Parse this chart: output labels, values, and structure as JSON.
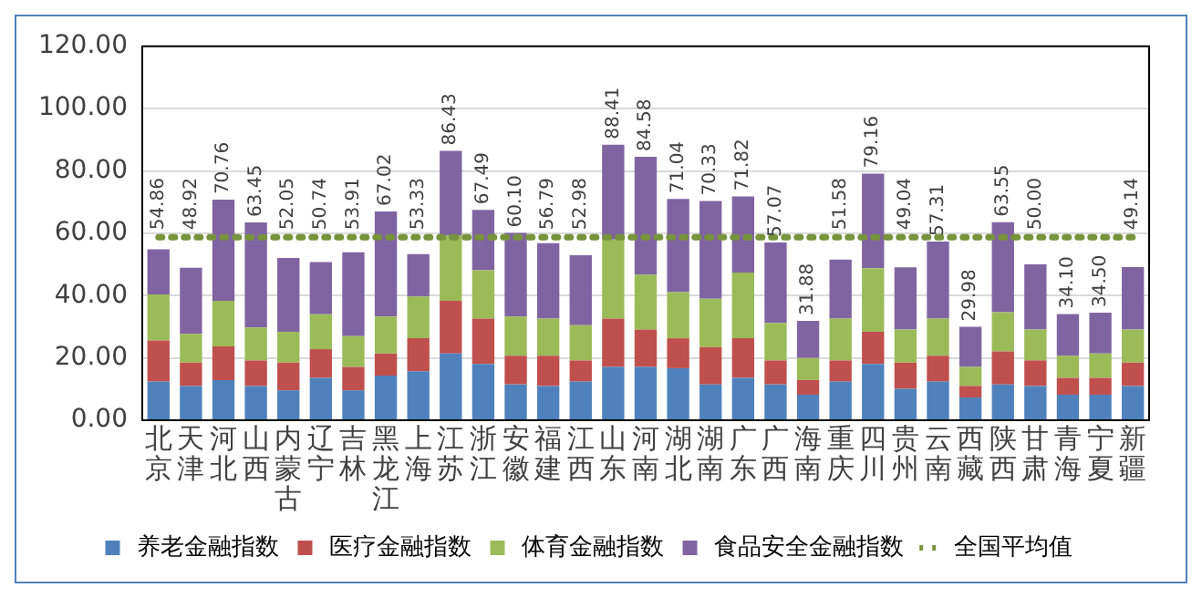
{
  "chart_data": {
    "type": "bar",
    "stacked": true,
    "categories": [
      "北京",
      "天津",
      "河北",
      "山西",
      "内蒙古",
      "辽宁",
      "吉林",
      "黑龙江",
      "上海",
      "江苏",
      "浙江",
      "安徽",
      "福建",
      "江西",
      "山东",
      "河南",
      "湖北",
      "湖南",
      "广东",
      "广西",
      "海南",
      "重庆",
      "四川",
      "贵州",
      "云南",
      "西藏",
      "陕西",
      "甘肃",
      "青海",
      "宁夏",
      "新疆"
    ],
    "series": [
      {
        "name": "养老金融指数",
        "color": "#4f81bd",
        "values": [
          12.4,
          11.0,
          12.9,
          11.0,
          9.6,
          13.6,
          9.6,
          14.3,
          15.7,
          21.4,
          18.1,
          11.5,
          11.0,
          12.4,
          17.1,
          17.1,
          16.7,
          11.5,
          13.6,
          11.5,
          8.2,
          12.4,
          18.1,
          10.1,
          12.4,
          7.3,
          11.5,
          11.0,
          8.2,
          8.2,
          11.0
        ]
      },
      {
        "name": "医疗金融指数",
        "color": "#c0504d",
        "values": [
          13.2,
          7.5,
          10.8,
          8.2,
          8.9,
          9.2,
          7.5,
          7.1,
          10.6,
          16.9,
          14.5,
          9.2,
          9.7,
          6.8,
          15.5,
          12.0,
          9.6,
          12.0,
          12.7,
          7.7,
          4.7,
          6.8,
          10.3,
          8.4,
          8.3,
          3.7,
          10.6,
          8.2,
          5.4,
          5.4,
          7.5
        ]
      },
      {
        "name": "体育金融指数",
        "color": "#9bbb59",
        "values": [
          14.8,
          9.2,
          14.6,
          10.6,
          9.9,
          11.2,
          9.9,
          11.9,
          13.4,
          21.1,
          15.5,
          12.6,
          11.9,
          11.3,
          25.4,
          17.6,
          14.8,
          15.5,
          21.1,
          12.0,
          7.1,
          13.4,
          20.4,
          10.6,
          11.9,
          6.1,
          12.6,
          9.9,
          7.1,
          7.8,
          10.6
        ]
      },
      {
        "name": "食品安全金融指数",
        "color": "#8064a2",
        "values": [
          14.46,
          21.22,
          32.46,
          33.65,
          23.65,
          16.74,
          26.91,
          33.72,
          13.63,
          27.03,
          19.39,
          26.8,
          24.19,
          22.48,
          30.41,
          37.88,
          29.94,
          31.33,
          24.42,
          25.87,
          11.88,
          18.98,
          30.36,
          19.94,
          24.71,
          12.88,
          28.85,
          20.9,
          13.4,
          13.1,
          20.04
        ]
      },
      {
        "name": "全国平均值",
        "type": "line",
        "color": "#77933c",
        "line_style": "dotted",
        "marker": "none",
        "values": [
          58.7,
          58.7,
          58.7,
          58.7,
          58.7,
          58.7,
          58.7,
          58.7,
          58.7,
          58.7,
          58.7,
          58.7,
          58.7,
          58.7,
          58.7,
          58.7,
          58.7,
          58.7,
          58.7,
          58.7,
          58.7,
          58.7,
          58.7,
          58.7,
          58.7,
          58.7,
          58.7,
          58.7,
          58.7,
          58.7,
          58.7
        ]
      }
    ],
    "totals": [
      "54.86",
      "48.92",
      "70.76",
      "63.45",
      "52.05",
      "50.74",
      "53.91",
      "67.02",
      "53.33",
      "86.43",
      "67.49",
      "60.10",
      "56.79",
      "52.98",
      "88.41",
      "84.58",
      "71.04",
      "70.33",
      "71.82",
      "57.07",
      "31.88",
      "51.58",
      "79.16",
      "49.04",
      "57.31",
      "29.98",
      "63.55",
      "50.00",
      "34.10",
      "34.50",
      "49.14"
    ],
    "ylim": [
      0,
      120
    ],
    "yticks": [
      {
        "value": 0,
        "label": "0.00"
      },
      {
        "value": 20,
        "label": "20.00"
      },
      {
        "value": 40,
        "label": "40.00"
      },
      {
        "value": 60,
        "label": "60.00"
      },
      {
        "value": 80,
        "label": "80.00"
      },
      {
        "value": 100,
        "label": "100.00"
      },
      {
        "value": 120,
        "label": "120.00"
      }
    ],
    "grid": "y",
    "legend": "bottom"
  }
}
